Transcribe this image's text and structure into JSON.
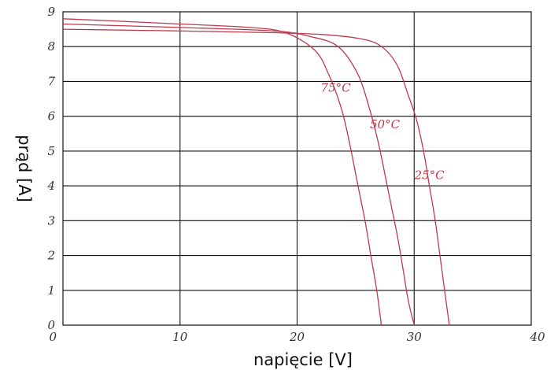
{
  "chart_data": {
    "type": "line",
    "title": "",
    "xlabel": "napięcie [V]",
    "ylabel": "prąd [A]",
    "xlim": [
      0,
      40
    ],
    "ylim": [
      0,
      9
    ],
    "x_ticks": [
      0,
      10,
      20,
      30,
      40
    ],
    "y_ticks": [
      0,
      1,
      2,
      3,
      4,
      5,
      6,
      7,
      8,
      9
    ],
    "grid": true,
    "curve_color": "#c0394a",
    "series": [
      {
        "name": "25°C",
        "points": [
          [
            0,
            8.5
          ],
          [
            10,
            8.45
          ],
          [
            18,
            8.4
          ],
          [
            22,
            8.35
          ],
          [
            25,
            8.25
          ],
          [
            27,
            8.05
          ],
          [
            28.5,
            7.5
          ],
          [
            29.5,
            6.6
          ],
          [
            30.2,
            5.9
          ],
          [
            30.8,
            5.0
          ],
          [
            31.3,
            4.0
          ],
          [
            31.8,
            3.0
          ],
          [
            32.2,
            2.0
          ],
          [
            32.6,
            1.0
          ],
          [
            33.0,
            0
          ]
        ]
      },
      {
        "name": "50°C",
        "points": [
          [
            0,
            8.65
          ],
          [
            10,
            8.55
          ],
          [
            18,
            8.45
          ],
          [
            21,
            8.3
          ],
          [
            23.5,
            8.0
          ],
          [
            25.2,
            7.2
          ],
          [
            26.2,
            6.2
          ],
          [
            26.9,
            5.3
          ],
          [
            27.4,
            4.5
          ],
          [
            28.0,
            3.5
          ],
          [
            28.6,
            2.5
          ],
          [
            29.1,
            1.5
          ],
          [
            29.5,
            0.7
          ],
          [
            30.0,
            0
          ]
        ]
      },
      {
        "name": "75°C",
        "points": [
          [
            0,
            8.8
          ],
          [
            10,
            8.65
          ],
          [
            16,
            8.55
          ],
          [
            19,
            8.4
          ],
          [
            21.5,
            7.9
          ],
          [
            22.7,
            7.2
          ],
          [
            23.8,
            6.2
          ],
          [
            24.5,
            5.2
          ],
          [
            25.2,
            4.0
          ],
          [
            25.8,
            3.0
          ],
          [
            26.3,
            2.0
          ],
          [
            26.8,
            1.0
          ],
          [
            27.2,
            0
          ]
        ]
      }
    ],
    "annotations": [
      {
        "text": "75°C",
        "x": 23.3,
        "y": 6.7
      },
      {
        "text": "50°C",
        "x": 27.5,
        "y": 5.65
      },
      {
        "text": "25°C",
        "x": 31.3,
        "y": 4.2
      }
    ]
  }
}
